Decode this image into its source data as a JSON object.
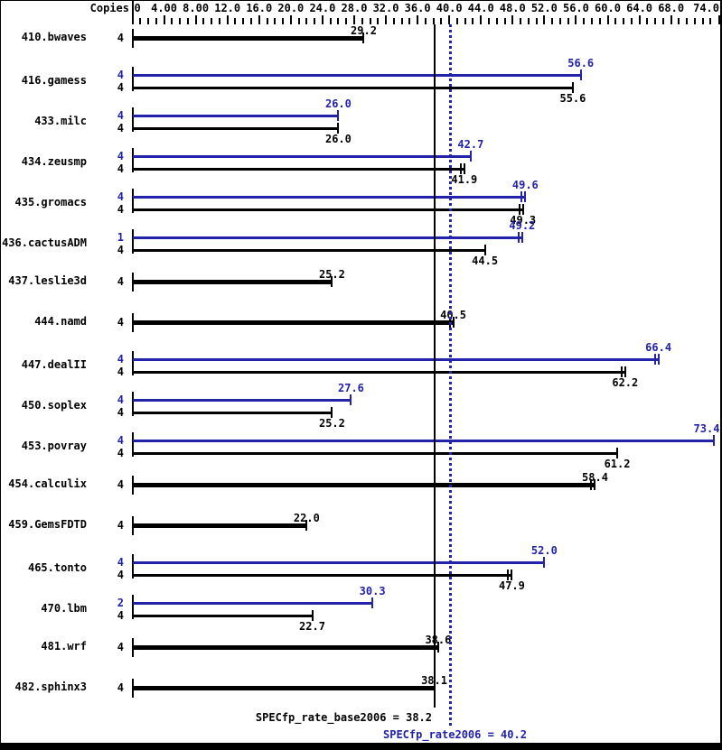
{
  "header": {
    "copies_label": "Copies"
  },
  "colors": {
    "peak_blue": "#2222aa",
    "base_black": "#000000",
    "background": "#ffffff"
  },
  "footer": {
    "base_summary": "SPECfp_rate_base2006 = 38.2",
    "peak_summary": "SPECfp_rate2006 = 40.2"
  },
  "chart_data": {
    "type": "bar",
    "orientation": "horizontal",
    "title": "",
    "xlabel": "",
    "ylabel": "Copies",
    "xlim": [
      0,
      74.2
    ],
    "grid": false,
    "axis_tick_labels": [
      {
        "value": 0,
        "label": "0"
      },
      {
        "value": 4,
        "label": "4.00"
      },
      {
        "value": 8,
        "label": "8.00"
      },
      {
        "value": 12,
        "label": "12.0"
      },
      {
        "value": 16,
        "label": "16.0"
      },
      {
        "value": 20,
        "label": "20.0"
      },
      {
        "value": 24,
        "label": "24.0"
      },
      {
        "value": 28,
        "label": "28.0"
      },
      {
        "value": 32,
        "label": "32.0"
      },
      {
        "value": 36,
        "label": "36.0"
      },
      {
        "value": 40,
        "label": "40.0"
      },
      {
        "value": 44,
        "label": "44.0"
      },
      {
        "value": 48,
        "label": "48.0"
      },
      {
        "value": 52,
        "label": "52.0"
      },
      {
        "value": 56,
        "label": "56.0"
      },
      {
        "value": 60,
        "label": "60.0"
      },
      {
        "value": 64,
        "label": "64.0"
      },
      {
        "value": 68,
        "label": "68.0"
      },
      {
        "value": 74,
        "label": "74.0"
      }
    ],
    "minor_tick_step": 1,
    "major_tick_step": 4,
    "benchmarks": [
      {
        "name": "410.bwaves",
        "bars": [
          {
            "kind": "base",
            "copies": "4",
            "value": 29.2,
            "label": "29.2",
            "double_tick": false
          }
        ]
      },
      {
        "name": "416.gamess",
        "bars": [
          {
            "kind": "peak",
            "copies": "4",
            "value": 56.6,
            "label": "56.6",
            "double_tick": false
          },
          {
            "kind": "base",
            "copies": "4",
            "value": 55.6,
            "label": "55.6",
            "double_tick": false
          }
        ]
      },
      {
        "name": "433.milc",
        "bars": [
          {
            "kind": "peak",
            "copies": "4",
            "value": 26.0,
            "label": "26.0",
            "double_tick": false
          },
          {
            "kind": "base",
            "copies": "4",
            "value": 26.0,
            "label": "26.0",
            "double_tick": false
          }
        ]
      },
      {
        "name": "434.zeusmp",
        "bars": [
          {
            "kind": "peak",
            "copies": "4",
            "value": 42.7,
            "label": "42.7",
            "double_tick": false
          },
          {
            "kind": "base",
            "copies": "4",
            "value": 41.9,
            "label": "41.9",
            "double_tick": true
          }
        ]
      },
      {
        "name": "435.gromacs",
        "bars": [
          {
            "kind": "peak",
            "copies": "4",
            "value": 49.6,
            "label": "49.6",
            "double_tick": true
          },
          {
            "kind": "base",
            "copies": "4",
            "value": 49.3,
            "label": "49.3",
            "double_tick": true
          }
        ]
      },
      {
        "name": "436.cactusADM",
        "bars": [
          {
            "kind": "peak",
            "copies": "1",
            "value": 49.2,
            "label": "49.2",
            "double_tick": true
          },
          {
            "kind": "base",
            "copies": "4",
            "value": 44.5,
            "label": "44.5",
            "double_tick": false
          }
        ]
      },
      {
        "name": "437.leslie3d",
        "bars": [
          {
            "kind": "base",
            "copies": "4",
            "value": 25.2,
            "label": "25.2",
            "double_tick": false
          }
        ]
      },
      {
        "name": "444.namd",
        "bars": [
          {
            "kind": "base",
            "copies": "4",
            "value": 40.5,
            "label": "40.5",
            "double_tick": true
          }
        ]
      },
      {
        "name": "447.dealII",
        "bars": [
          {
            "kind": "peak",
            "copies": "4",
            "value": 66.4,
            "label": "66.4",
            "double_tick": true
          },
          {
            "kind": "base",
            "copies": "4",
            "value": 62.2,
            "label": "62.2",
            "double_tick": true
          }
        ]
      },
      {
        "name": "450.soplex",
        "bars": [
          {
            "kind": "peak",
            "copies": "4",
            "value": 27.6,
            "label": "27.6",
            "double_tick": false
          },
          {
            "kind": "base",
            "copies": "4",
            "value": 25.2,
            "label": "25.2",
            "double_tick": false
          }
        ]
      },
      {
        "name": "453.povray",
        "bars": [
          {
            "kind": "peak",
            "copies": "4",
            "value": 73.4,
            "label": "73.4",
            "double_tick": false
          },
          {
            "kind": "base",
            "copies": "4",
            "value": 61.2,
            "label": "61.2",
            "double_tick": false
          }
        ]
      },
      {
        "name": "454.calculix",
        "bars": [
          {
            "kind": "base",
            "copies": "4",
            "value": 58.4,
            "label": "58.4",
            "double_tick": true
          }
        ]
      },
      {
        "name": "459.GemsFDTD",
        "bars": [
          {
            "kind": "base",
            "copies": "4",
            "value": 22.0,
            "label": "22.0",
            "double_tick": false
          }
        ]
      },
      {
        "name": "465.tonto",
        "bars": [
          {
            "kind": "peak",
            "copies": "4",
            "value": 52.0,
            "label": "52.0",
            "double_tick": false
          },
          {
            "kind": "base",
            "copies": "4",
            "value": 47.9,
            "label": "47.9",
            "double_tick": true
          }
        ]
      },
      {
        "name": "470.lbm",
        "bars": [
          {
            "kind": "peak",
            "copies": "2",
            "value": 30.3,
            "label": "30.3",
            "double_tick": false
          },
          {
            "kind": "base",
            "copies": "4",
            "value": 22.7,
            "label": "22.7",
            "double_tick": false
          }
        ]
      },
      {
        "name": "481.wrf",
        "bars": [
          {
            "kind": "base",
            "copies": "4",
            "value": 38.6,
            "label": "38.6",
            "double_tick": true
          }
        ]
      },
      {
        "name": "482.sphinx3",
        "bars": [
          {
            "kind": "base",
            "copies": "4",
            "value": 38.1,
            "label": "38.1",
            "double_tick": false
          }
        ]
      }
    ],
    "reference_lines": [
      {
        "name": "base_mean",
        "value": 38.2,
        "style": "solid",
        "color": "#000000",
        "label": "SPECfp_rate_base2006 = 38.2"
      },
      {
        "name": "peak_mean",
        "value": 40.2,
        "style": "dotted",
        "color": "#2222aa",
        "label": "SPECfp_rate2006 = 40.2"
      }
    ]
  }
}
